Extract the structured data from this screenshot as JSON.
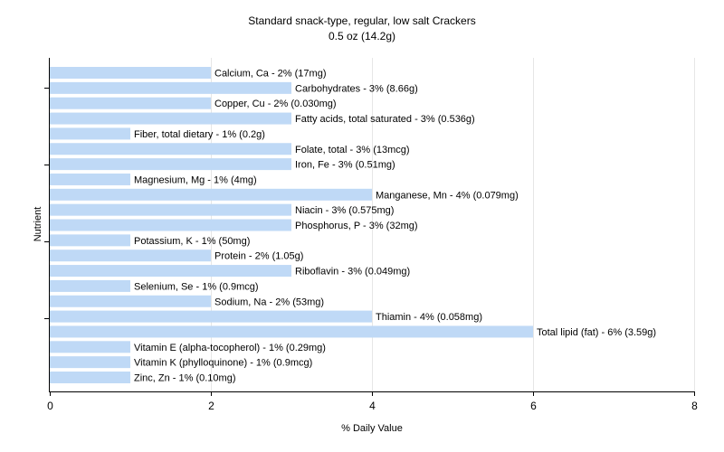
{
  "chart_data": {
    "type": "bar",
    "orientation": "horizontal",
    "title": "Standard snack-type, regular, low salt Crackers",
    "subtitle": "0.5 oz (14.2g)",
    "xlabel": "% Daily Value",
    "ylabel": "Nutrient",
    "xlim": [
      0,
      8
    ],
    "xticks": [
      0,
      2,
      4,
      6,
      8
    ],
    "grid": true,
    "bar_color": "#bfd9f6",
    "bars": [
      {
        "name": "Calcium, Ca",
        "value": 2,
        "label": "Calcium, Ca - 2% (17mg)"
      },
      {
        "name": "Carbohydrates",
        "value": 3,
        "label": "Carbohydrates - 3% (8.66g)"
      },
      {
        "name": "Copper, Cu",
        "value": 2,
        "label": "Copper, Cu - 2% (0.030mg)"
      },
      {
        "name": "Fatty acids, total saturated",
        "value": 3,
        "label": "Fatty acids, total saturated - 3% (0.536g)"
      },
      {
        "name": "Fiber, total dietary",
        "value": 1,
        "label": "Fiber, total dietary - 1% (0.2g)"
      },
      {
        "name": "Folate, total",
        "value": 3,
        "label": "Folate, total - 3% (13mcg)"
      },
      {
        "name": "Iron, Fe",
        "value": 3,
        "label": "Iron, Fe - 3% (0.51mg)"
      },
      {
        "name": "Magnesium, Mg",
        "value": 1,
        "label": "Magnesium, Mg - 1% (4mg)"
      },
      {
        "name": "Manganese, Mn",
        "value": 4,
        "label": "Manganese, Mn - 4% (0.079mg)"
      },
      {
        "name": "Niacin",
        "value": 3,
        "label": "Niacin - 3% (0.575mg)"
      },
      {
        "name": "Phosphorus, P",
        "value": 3,
        "label": "Phosphorus, P - 3% (32mg)"
      },
      {
        "name": "Potassium, K",
        "value": 1,
        "label": "Potassium, K - 1% (50mg)"
      },
      {
        "name": "Protein",
        "value": 2,
        "label": "Protein - 2% (1.05g)"
      },
      {
        "name": "Riboflavin",
        "value": 3,
        "label": "Riboflavin - 3% (0.049mg)"
      },
      {
        "name": "Selenium, Se",
        "value": 1,
        "label": "Selenium, Se - 1% (0.9mcg)"
      },
      {
        "name": "Sodium, Na",
        "value": 2,
        "label": "Sodium, Na - 2% (53mg)"
      },
      {
        "name": "Thiamin",
        "value": 4,
        "label": "Thiamin - 4% (0.058mg)"
      },
      {
        "name": "Total lipid (fat)",
        "value": 6,
        "label": "Total lipid (fat) - 6% (3.59g)"
      },
      {
        "name": "Vitamin E (alpha-tocopherol)",
        "value": 1,
        "label": "Vitamin E (alpha-tocopherol) - 1% (0.29mg)"
      },
      {
        "name": "Vitamin K (phylloquinone)",
        "value": 1,
        "label": "Vitamin K (phylloquinone) - 1% (0.9mcg)"
      },
      {
        "name": "Zinc, Zn",
        "value": 1,
        "label": "Zinc, Zn - 1% (0.10mg)"
      }
    ]
  }
}
